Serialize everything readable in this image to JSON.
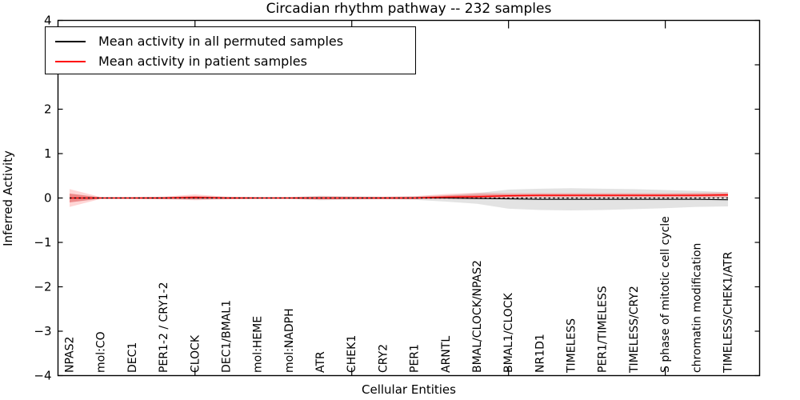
{
  "figure": {
    "title": "Circadian rhythm pathway -- 232 samples",
    "xlabel": "Cellular Entities",
    "ylabel": "Inferred Activity",
    "background_color": "#ffffff",
    "axis_color": "#000000"
  },
  "legend": {
    "position": "upper left",
    "entries": [
      {
        "label": "Mean activity in all permuted samples",
        "color": "#000000"
      },
      {
        "label": "Mean activity in patient samples",
        "color": "#ff0000"
      }
    ]
  },
  "chart_data": {
    "type": "line",
    "title": "Circadian rhythm pathway -- 232 samples",
    "xlabel": "Cellular Entities",
    "ylabel": "Inferred Activity",
    "ylim": [
      -4,
      4
    ],
    "grid": false,
    "legend_position": "upper left",
    "y_ticks": [
      4,
      3,
      2,
      1,
      0,
      -1,
      -2,
      -3,
      -4
    ],
    "y_tick_labels": [
      "4",
      "3",
      "2",
      "1",
      "0",
      "−1",
      "−2",
      "−3",
      "−4"
    ],
    "x_major_tick_indices": [
      4,
      9,
      14,
      19
    ],
    "categories": [
      "NPAS2",
      "mol:CO",
      "DEC1",
      "PER1-2 / CRY1-2",
      "CLOCK",
      "DEC1/BMAL1",
      "mol:HEME",
      "mol:NADPH",
      "ATR",
      "CHEK1",
      "CRY2",
      "PER1",
      "ARNTL",
      "BMAL/CLOCK/NPAS2",
      "BMAL1/CLOCK",
      "NR1D1",
      "TIMELESS",
      "PER1/TIMELESS",
      "TIMELESS/CRY2",
      "S phase of mitotic cell cycle",
      "chromatin modification",
      "TIMELESS/CHEK1/ATR"
    ],
    "series": [
      {
        "name": "Mean activity in all permuted samples",
        "color": "#000000",
        "style": "solid",
        "width": 1.1,
        "values": [
          0,
          0,
          0,
          0,
          0,
          0,
          0,
          0,
          0,
          0,
          0,
          0,
          0,
          -0.01,
          -0.02,
          -0.03,
          -0.03,
          -0.03,
          -0.03,
          -0.03,
          -0.03,
          -0.04
        ]
      },
      {
        "name": "Mean activity in patient samples",
        "color": "#ff0000",
        "style": "solid",
        "width": 1.4,
        "values": [
          0,
          0,
          0,
          0,
          0.01,
          0,
          0,
          0,
          0,
          0,
          0,
          0,
          0.02,
          0.03,
          0.05,
          0.06,
          0.06,
          0.06,
          0.06,
          0.06,
          0.06,
          0.07
        ]
      }
    ],
    "bands": [
      {
        "name": "permuted-samples-std-band",
        "color": "#000000",
        "layers": [
          {
            "scale": 1.0,
            "opacity": 0.11
          }
        ],
        "mean": [
          0,
          0,
          0,
          0,
          0,
          0,
          0,
          0,
          0,
          0,
          0,
          0,
          0,
          -0.01,
          -0.02,
          -0.03,
          -0.03,
          -0.03,
          -0.03,
          -0.03,
          -0.03,
          -0.04
        ],
        "upper": [
          0.1,
          0.02,
          0.02,
          0.03,
          0.04,
          0.03,
          0.02,
          0.02,
          0.05,
          0.04,
          0.03,
          0.04,
          0.06,
          0.11,
          0.19,
          0.21,
          0.22,
          0.21,
          0.2,
          0.18,
          0.16,
          0.13
        ],
        "lower": [
          -0.1,
          -0.02,
          -0.02,
          -0.03,
          -0.04,
          -0.03,
          -0.02,
          -0.02,
          -0.05,
          -0.04,
          -0.03,
          -0.04,
          -0.08,
          -0.13,
          -0.24,
          -0.27,
          -0.28,
          -0.27,
          -0.25,
          -0.23,
          -0.2,
          -0.19
        ]
      },
      {
        "name": "patient-samples-std-band",
        "color": "#ff0000",
        "layers": [
          {
            "scale": 1.0,
            "opacity": 0.16
          },
          {
            "scale": 0.5,
            "opacity": 0.28
          }
        ],
        "mean": [
          0,
          0,
          0,
          0,
          0.01,
          0,
          0,
          0,
          0,
          0,
          0,
          0,
          0.02,
          0.03,
          0.05,
          0.06,
          0.06,
          0.06,
          0.06,
          0.06,
          0.06,
          0.07
        ],
        "upper": [
          0.2,
          0.02,
          0.02,
          0.03,
          0.08,
          0.03,
          0.02,
          0.02,
          0.04,
          0.03,
          0.03,
          0.04,
          0.09,
          0.12,
          0.11,
          0.11,
          0.11,
          0.11,
          0.11,
          0.11,
          0.12,
          0.13
        ],
        "lower": [
          -0.2,
          -0.02,
          -0.02,
          -0.03,
          -0.05,
          -0.03,
          -0.02,
          -0.02,
          -0.04,
          -0.03,
          -0.03,
          -0.03,
          -0.03,
          -0.03,
          0.0,
          0.01,
          0.01,
          0.01,
          0.01,
          0.01,
          0.01,
          0.01
        ]
      }
    ],
    "zero_line": {
      "value": 0,
      "style": "dotted",
      "color": "#000000"
    }
  }
}
